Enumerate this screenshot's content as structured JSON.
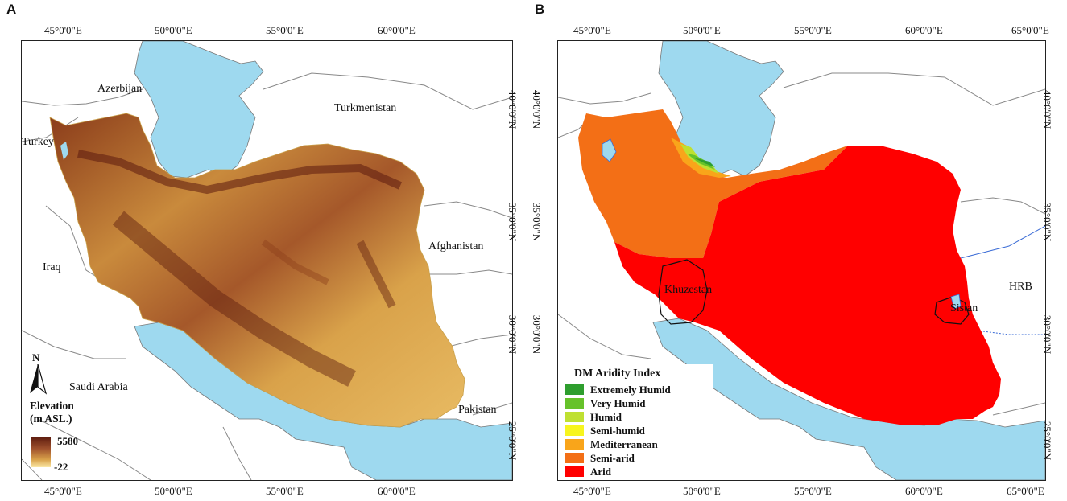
{
  "panel_a": {
    "letter": "A",
    "top_ticks": [
      "45°0'0\"E",
      "50°0'0\"E",
      "55°0'0\"E",
      "60°0'0\"E"
    ],
    "bottom_ticks": [
      "45°0'0\"E",
      "50°0'0\"E",
      "55°0'0\"E",
      "60°0'0\"E"
    ],
    "right_ticks": [
      "40°0'0\"N",
      "35°0'0\"N",
      "30°0'0\"N",
      "25°0'0\"N"
    ],
    "countries": {
      "azerbijan": "Azerbijan",
      "turkmenistan": "Turkmenistan",
      "turkey": "Turkey",
      "afghanistan": "Afghanistan",
      "iraq": "Iraq",
      "saudi_arabia": "Saudi Arabia",
      "pakistan": "Pakistan"
    },
    "north_label": "N",
    "elevation_legend": {
      "title_line1": "Elevation",
      "title_line2": "(m ASL.)",
      "max": "5580",
      "min": "-22"
    }
  },
  "panel_b": {
    "letter": "B",
    "top_ticks": [
      "45°0'0\"E",
      "50°0'0\"E",
      "55°0'0\"E",
      "60°0'0\"E",
      "65°0'0\"E"
    ],
    "bottom_ticks": [
      "45°0'0\"E",
      "50°0'0\"E",
      "55°0'0\"E",
      "60°0'0\"E",
      "65°0'0\"E"
    ],
    "left_ticks": [
      "40°0'0\"N",
      "35°0'0\"N",
      "30°0'0\"N"
    ],
    "right_ticks": [
      "40°0'0\"N",
      "35°0'0\"N",
      "30°0'0\"N",
      "25°0'0\"N"
    ],
    "regions": {
      "khuzestan": "Khuzestan",
      "sistan": "Sistan",
      "hrb": "HRB"
    },
    "legend": {
      "title": "DM Aridity Index",
      "items": [
        {
          "label": "Extremely Humid",
          "color": "#2e9e2e"
        },
        {
          "label": "Very Humid",
          "color": "#66c22a"
        },
        {
          "label": "Humid",
          "color": "#bfe031"
        },
        {
          "label": "Semi-humid",
          "color": "#f7f51e"
        },
        {
          "label": "Mediterranean",
          "color": "#f9a51a"
        },
        {
          "label": "Semi-arid",
          "color": "#f36f16"
        },
        {
          "label": "Arid",
          "color": "#ff0000"
        }
      ]
    }
  },
  "colors": {
    "water": "#9ed9ef",
    "border_lines": "#777777",
    "arid": "#ff0000",
    "semi_arid": "#f36f16",
    "elevation_high": "#5b1a0e",
    "elevation_low": "#fbe8a6"
  }
}
